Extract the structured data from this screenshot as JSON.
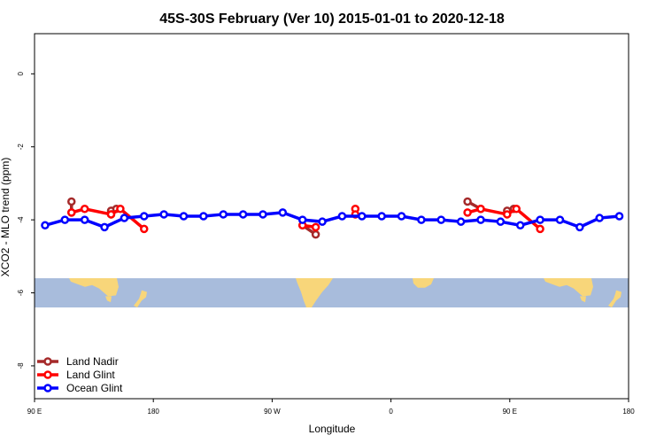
{
  "chart_data": {
    "type": "line",
    "title": "45S-30S February (Ver 10)   2015-01-01 to 2020-12-18",
    "xlabel": "Longitude",
    "ylabel": "XCO2 - MLO trend (ppm)",
    "xlim": [
      90,
      540
    ],
    "ylim": [
      -8.9,
      1.1
    ],
    "x_ticks": [
      {
        "value": 90,
        "label": "90 E"
      },
      {
        "value": 180,
        "label": "180"
      },
      {
        "value": 270,
        "label": "90 W"
      },
      {
        "value": 360,
        "label": "0"
      },
      {
        "value": 450,
        "label": "90 E"
      },
      {
        "value": 540,
        "label": "180"
      }
    ],
    "y_ticks": [
      {
        "value": 0,
        "label": "0"
      },
      {
        "value": -2,
        "label": "-2"
      },
      {
        "value": -4,
        "label": "-4"
      },
      {
        "value": -6,
        "label": "-6"
      },
      {
        "value": -8,
        "label": "-8"
      }
    ],
    "grid": false,
    "legend_position": "bottom-left",
    "map_strip": {
      "y_range": [
        -6.4,
        -5.6
      ],
      "ocean_color": "#a8bcdc",
      "land_color": "#f8d67a"
    },
    "series": [
      {
        "name": "Land Nadir",
        "color": "#a52a2a",
        "segments": [
          [
            [
              118,
              -3.5
            ],
            [
              118,
              -3.8
            ]
          ],
          [
            [
              148,
              -3.75
            ],
            [
              148,
              -3.85
            ]
          ],
          [
            [
              152,
              -3.7
            ]
          ],
          [
            [
              293,
              -4.15
            ],
            [
              303,
              -4.4
            ]
          ],
          [
            [
              418,
              -3.5
            ],
            [
              428,
              -3.7
            ]
          ],
          [
            [
              448,
              -3.75
            ]
          ],
          [
            [
              453,
              -3.7
            ]
          ]
        ]
      },
      {
        "name": "Land Glint",
        "color": "#ff0000",
        "segments": [
          [
            [
              118,
              -3.8
            ],
            [
              128,
              -3.7
            ],
            [
              148,
              -3.85
            ],
            [
              155,
              -3.7
            ],
            [
              173,
              -4.25
            ]
          ],
          [
            [
              293,
              -4.15
            ],
            [
              303,
              -4.2
            ]
          ],
          [
            [
              333,
              -3.7
            ],
            [
              333,
              -3.85
            ]
          ],
          [
            [
              418,
              -3.8
            ],
            [
              428,
              -3.7
            ],
            [
              448,
              -3.85
            ],
            [
              455,
              -3.7
            ],
            [
              473,
              -4.25
            ]
          ]
        ]
      },
      {
        "name": "Ocean Glint",
        "color": "#0000ff",
        "segments": [
          [
            [
              98,
              -4.15
            ],
            [
              113,
              -4.0
            ],
            [
              128,
              -4.0
            ],
            [
              143,
              -4.2
            ],
            [
              158,
              -3.95
            ],
            [
              173,
              -3.9
            ],
            [
              188,
              -3.85
            ],
            [
              203,
              -3.9
            ],
            [
              218,
              -3.9
            ],
            [
              233,
              -3.85
            ],
            [
              248,
              -3.85
            ],
            [
              263,
              -3.85
            ],
            [
              278,
              -3.8
            ],
            [
              293,
              -4.0
            ],
            [
              308,
              -4.05
            ],
            [
              323,
              -3.9
            ],
            [
              338,
              -3.9
            ],
            [
              353,
              -3.9
            ],
            [
              368,
              -3.9
            ],
            [
              383,
              -4.0
            ],
            [
              398,
              -4.0
            ],
            [
              413,
              -4.05
            ],
            [
              428,
              -4.0
            ],
            [
              443,
              -4.05
            ],
            [
              458,
              -4.15
            ],
            [
              473,
              -4.0
            ],
            [
              488,
              -4.0
            ],
            [
              503,
              -4.2
            ],
            [
              518,
              -3.95
            ],
            [
              533,
              -3.9
            ]
          ]
        ]
      }
    ]
  }
}
